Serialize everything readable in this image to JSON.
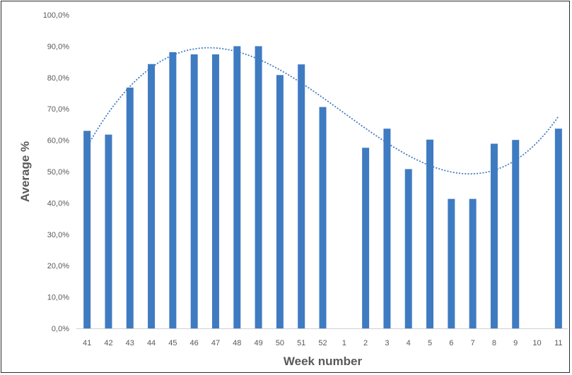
{
  "chart_data": {
    "type": "bar",
    "title": "",
    "xlabel": "Week number",
    "ylabel": "Average %",
    "ylim": [
      0,
      100
    ],
    "yticks": [
      0,
      10,
      20,
      30,
      40,
      50,
      60,
      70,
      80,
      90,
      100
    ],
    "ytick_labels": [
      "0,0%",
      "10,0%",
      "20,0%",
      "30,0%",
      "40,0%",
      "50,0%",
      "60,0%",
      "70,0%",
      "80,0%",
      "90,0%",
      "100,0%"
    ],
    "categories": [
      "41",
      "42",
      "43",
      "44",
      "45",
      "46",
      "47",
      "48",
      "49",
      "50",
      "51",
      "52",
      "1",
      "2",
      "3",
      "4",
      "5",
      "6",
      "7",
      "8",
      "9",
      "10",
      "11"
    ],
    "values": [
      63.0,
      61.8,
      76.8,
      84.3,
      88.1,
      87.4,
      87.4,
      90.0,
      90.0,
      80.8,
      84.2,
      70.6,
      null,
      57.6,
      63.7,
      50.8,
      60.2,
      41.3,
      41.3,
      58.9,
      60.1,
      null,
      63.7
    ],
    "trendline": {
      "style": "dotted",
      "type": "polynomial"
    },
    "grid": false,
    "legend": "none",
    "bar_color": "#3f7bc1",
    "trend_color": "#3f7bc1"
  }
}
